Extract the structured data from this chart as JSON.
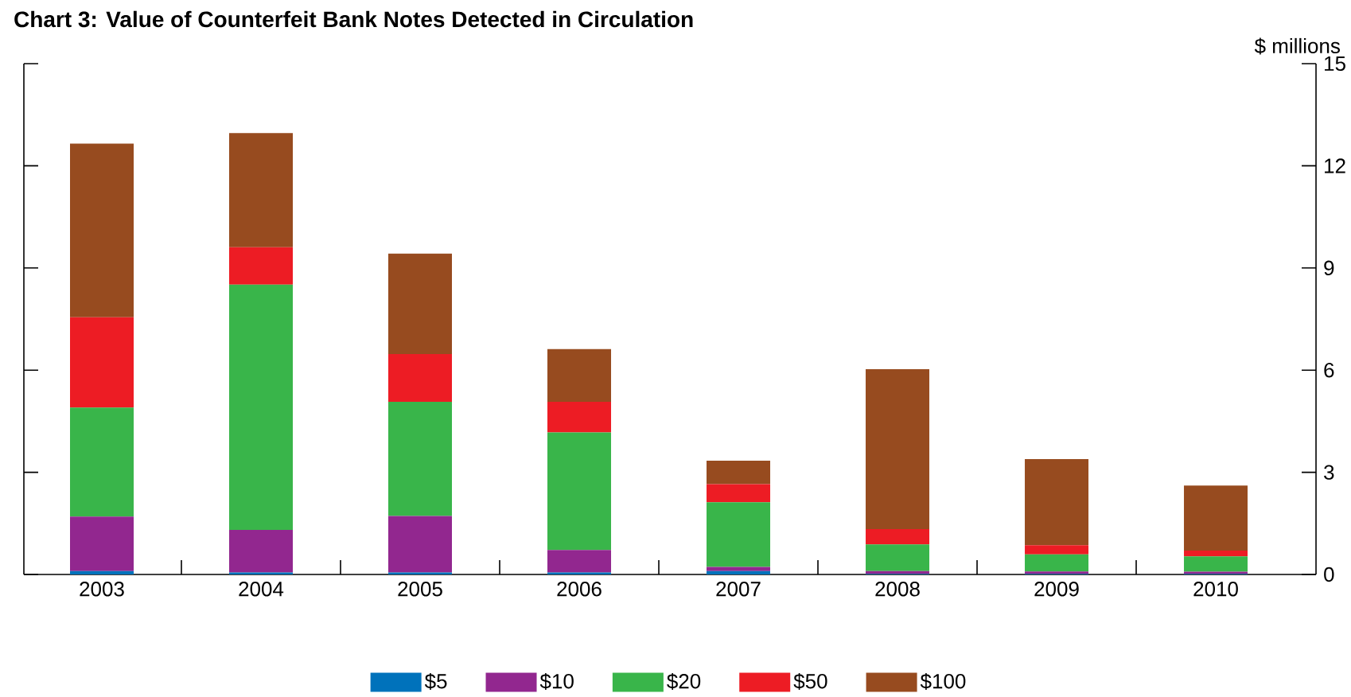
{
  "chart_data": {
    "type": "bar",
    "stacked": true,
    "title": "Chart 3: Value of Counterfeit Bank Notes Detected in Circulation",
    "ylabel": "$ millions",
    "categories": [
      "2003",
      "2004",
      "2005",
      "2006",
      "2007",
      "2008",
      "2009",
      "2010"
    ],
    "series": [
      {
        "name": "$5",
        "color": "#0072bb",
        "values": [
          0.1,
          0.06,
          0.06,
          0.06,
          0.1,
          0.02,
          0.02,
          0.02
        ]
      },
      {
        "name": "$10",
        "color": "#92278f",
        "values": [
          1.6,
          1.25,
          1.66,
          0.66,
          0.12,
          0.08,
          0.07,
          0.06
        ]
      },
      {
        "name": "$20",
        "color": "#39b54a",
        "values": [
          3.2,
          7.2,
          3.35,
          3.45,
          1.9,
          0.78,
          0.5,
          0.45
        ]
      },
      {
        "name": "$50",
        "color": "#ed1c24",
        "values": [
          2.65,
          1.1,
          1.4,
          0.9,
          0.53,
          0.45,
          0.27,
          0.17
        ]
      },
      {
        "name": "$100",
        "color": "#974b1f",
        "values": [
          5.1,
          3.35,
          2.95,
          1.55,
          0.69,
          4.7,
          2.53,
          1.91
        ]
      }
    ],
    "ylim": [
      0,
      15
    ],
    "yticks": [
      0,
      3,
      6,
      9,
      12,
      15
    ],
    "grid": false,
    "legend": "bottom"
  }
}
